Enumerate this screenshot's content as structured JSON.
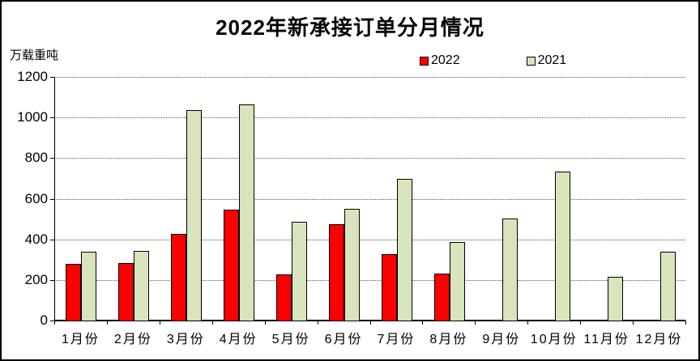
{
  "chart_data": {
    "type": "bar",
    "title": "2022年新承接订单分月情况",
    "unit_label": "万载重吨",
    "categories": [
      "1月份",
      "2月份",
      "3月份",
      "4月份",
      "5月份",
      "6月份",
      "7月份",
      "8月份",
      "9月份",
      "10月份",
      "11月份",
      "12月份"
    ],
    "series": [
      {
        "name": "2022",
        "color": "#FF0000",
        "values": [
          280,
          283,
          427,
          545,
          229,
          476,
          328,
          231,
          null,
          null,
          null,
          null
        ]
      },
      {
        "name": "2021",
        "color": "#D8E4BC",
        "values": [
          338,
          341,
          1037,
          1066,
          488,
          550,
          698,
          388,
          503,
          732,
          214,
          340
        ]
      }
    ],
    "ylim": [
      0,
      1200
    ],
    "yticks": [
      0,
      200,
      400,
      600,
      800,
      1000,
      1200
    ],
    "xlabel": "",
    "ylabel": "",
    "grid": "horizontal-dotted",
    "legend_position": "top"
  }
}
